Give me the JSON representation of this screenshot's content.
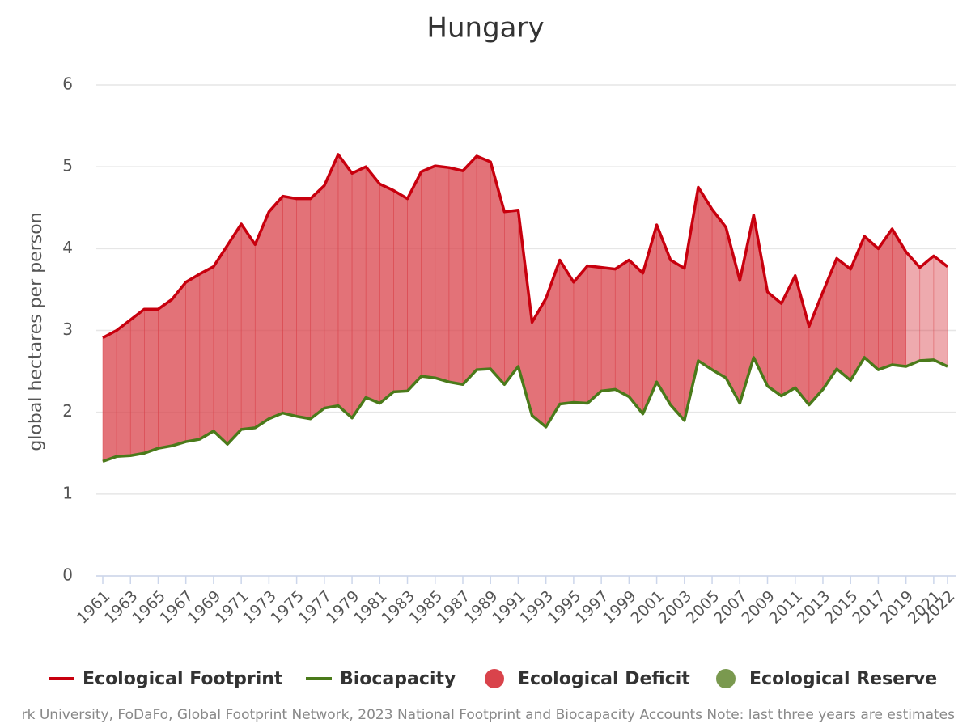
{
  "chart_data": {
    "type": "line",
    "title": "Hungary",
    "y_label": "global hectares per person",
    "source": "rk University, FoDaFo, Global Footprint Network, 2023 National Footprint and Biocapacity Accounts Note: last three years are estimates",
    "x": [
      1961,
      1962,
      1963,
      1964,
      1965,
      1966,
      1967,
      1968,
      1969,
      1970,
      1971,
      1972,
      1973,
      1974,
      1975,
      1976,
      1977,
      1978,
      1979,
      1980,
      1981,
      1982,
      1983,
      1984,
      1985,
      1986,
      1987,
      1988,
      1989,
      1990,
      1991,
      1992,
      1993,
      1994,
      1995,
      1996,
      1997,
      1998,
      1999,
      2000,
      2001,
      2002,
      2003,
      2004,
      2005,
      2006,
      2007,
      2008,
      2009,
      2010,
      2011,
      2012,
      2013,
      2014,
      2015,
      2016,
      2017,
      2018,
      2019,
      2020,
      2021,
      2022
    ],
    "xlim": [
      1961,
      2022
    ],
    "xticks": [
      1961,
      1963,
      1965,
      1967,
      1969,
      1971,
      1973,
      1975,
      1977,
      1979,
      1981,
      1983,
      1985,
      1987,
      1989,
      1991,
      1993,
      1995,
      1997,
      1999,
      2001,
      2003,
      2005,
      2007,
      2009,
      2011,
      2013,
      2015,
      2017,
      2019,
      2021,
      2022
    ],
    "ylim": [
      0,
      6
    ],
    "yticks": [
      0,
      1,
      2,
      3,
      4,
      5,
      6
    ],
    "grid": true,
    "estimated_from": 2019,
    "series": [
      {
        "name": "Ecological Footprint",
        "color": "#c8000e",
        "values": [
          2.91,
          3.0,
          3.13,
          3.26,
          3.26,
          3.38,
          3.59,
          3.69,
          3.78,
          4.04,
          4.3,
          4.05,
          4.45,
          4.64,
          4.61,
          4.61,
          4.77,
          5.15,
          4.92,
          5.0,
          4.79,
          4.71,
          4.61,
          4.94,
          5.01,
          4.99,
          4.95,
          5.13,
          5.06,
          4.45,
          4.47,
          3.1,
          3.39,
          3.86,
          3.59,
          3.79,
          3.77,
          3.75,
          3.86,
          3.7,
          4.29,
          3.86,
          3.76,
          4.75,
          4.48,
          4.26,
          3.61,
          4.41,
          3.47,
          3.33,
          3.67,
          3.05,
          3.47,
          3.88,
          3.75,
          4.15,
          4.0,
          4.24,
          3.96,
          3.77,
          3.91,
          3.78
        ]
      },
      {
        "name": "Biocapacity",
        "color": "#4a7a1a",
        "values": [
          1.4,
          1.46,
          1.47,
          1.5,
          1.56,
          1.59,
          1.64,
          1.67,
          1.77,
          1.61,
          1.79,
          1.81,
          1.92,
          1.99,
          1.95,
          1.92,
          2.05,
          2.08,
          1.93,
          2.18,
          2.11,
          2.25,
          2.26,
          2.44,
          2.42,
          2.37,
          2.34,
          2.52,
          2.53,
          2.34,
          2.56,
          1.96,
          1.82,
          2.1,
          2.12,
          2.11,
          2.26,
          2.28,
          2.19,
          1.98,
          2.37,
          2.09,
          1.9,
          2.63,
          2.52,
          2.42,
          2.11,
          2.67,
          2.32,
          2.2,
          2.3,
          2.09,
          2.28,
          2.53,
          2.39,
          2.67,
          2.52,
          2.58,
          2.56,
          2.63,
          2.64,
          2.56
        ]
      }
    ],
    "areas": [
      {
        "name": "Ecological Deficit",
        "color": "#d9434b"
      },
      {
        "name": "Ecological Reserve",
        "color": "#7a994f"
      }
    ]
  }
}
